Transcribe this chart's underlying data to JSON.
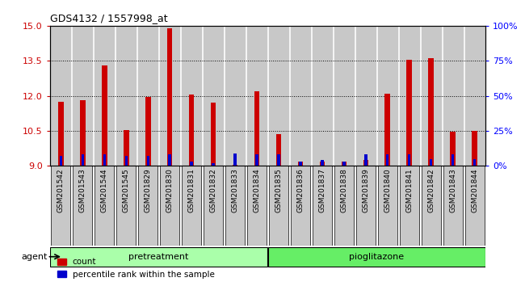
{
  "title": "GDS4132 / 1557998_at",
  "samples": [
    "GSM201542",
    "GSM201543",
    "GSM201544",
    "GSM201545",
    "GSM201829",
    "GSM201830",
    "GSM201831",
    "GSM201832",
    "GSM201833",
    "GSM201834",
    "GSM201835",
    "GSM201836",
    "GSM201837",
    "GSM201838",
    "GSM201839",
    "GSM201840",
    "GSM201841",
    "GSM201842",
    "GSM201843",
    "GSM201844"
  ],
  "count_values": [
    11.75,
    11.8,
    13.3,
    10.55,
    11.95,
    14.9,
    12.05,
    11.7,
    9.05,
    12.2,
    10.35,
    9.2,
    9.2,
    9.2,
    9.25,
    12.1,
    13.55,
    13.6,
    10.45,
    10.5
  ],
  "percentile_values": [
    7,
    8,
    8,
    7,
    7,
    8,
    3,
    2,
    9,
    8,
    8,
    3,
    4,
    3,
    8,
    8,
    8,
    5,
    8,
    5
  ],
  "ylim_left": [
    9,
    15
  ],
  "ylim_right": [
    0,
    100
  ],
  "yticks_left": [
    9,
    10.5,
    12,
    13.5,
    15
  ],
  "yticks_right": [
    0,
    25,
    50,
    75,
    100
  ],
  "ytick_labels_right": [
    "0%",
    "25%",
    "50%",
    "75%",
    "100%"
  ],
  "n_pretreatment": 10,
  "n_pioglitazone": 10,
  "bar_color_count": "#cc0000",
  "bar_color_pct": "#0000cc",
  "col_bg_color": "#c8c8c8",
  "plot_bg_color": "#ffffff",
  "pretreatment_color": "#aaffaa",
  "pioglitazone_color": "#66ee66",
  "legend_count_label": "count",
  "legend_pct_label": "percentile rank within the sample",
  "agent_label": "agent",
  "pretreatment_label": "pretreatment",
  "pioglitazone_label": "pioglitazone",
  "count_bar_width": 0.25,
  "pct_bar_width": 0.12
}
